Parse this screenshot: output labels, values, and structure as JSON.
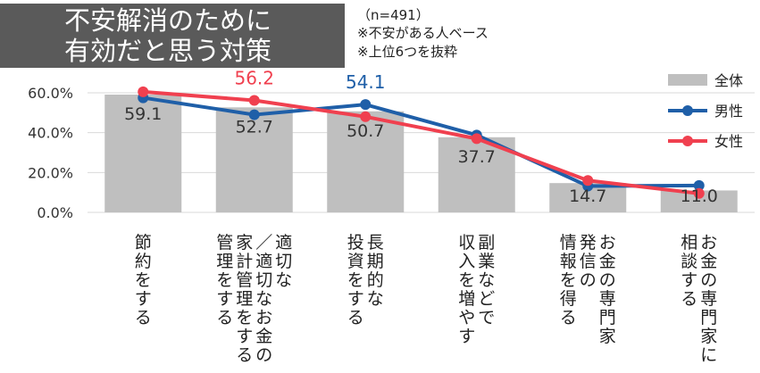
{
  "header": {
    "title_line1": "不安解消のために",
    "title_line2": "有効だと思う対策",
    "note_n": "（n=491）",
    "note_base": "※不安がある人ベース",
    "note_top": "※上位6つを抜粋"
  },
  "chart_data": {
    "type": "bar",
    "categories": [
      [
        "節約をする"
      ],
      [
        "適切な",
        "／適切なお金の",
        "家計管理をする",
        "管理をする"
      ],
      [
        "長期的な",
        "投資をする"
      ],
      [
        "副業などで",
        "収入を増やす"
      ],
      [
        "お金の専門家",
        "発信の",
        "情報を得る"
      ],
      [
        "お金の専門家に",
        "相談する"
      ]
    ],
    "series": [
      {
        "name": "全体",
        "kind": "bar",
        "color": "#bfbfbf",
        "values": [
          59.1,
          52.7,
          50.7,
          37.7,
          14.7,
          11.0
        ],
        "labels": [
          "59.1",
          "52.7",
          "50.7",
          "37.7",
          "14.7",
          "11.0"
        ]
      },
      {
        "name": "男性",
        "kind": "line",
        "color": "#1f5fa8",
        "values": [
          57.5,
          49.0,
          54.1,
          38.8,
          13.2,
          13.5
        ],
        "labels": [
          "",
          "",
          "54.1",
          "",
          "",
          ""
        ]
      },
      {
        "name": "女性",
        "kind": "line",
        "color": "#f0404f",
        "values": [
          60.5,
          56.2,
          48.0,
          37.0,
          16.0,
          9.5
        ],
        "labels": [
          "",
          "56.2",
          "",
          "",
          "",
          ""
        ]
      }
    ],
    "y_ticks": [
      "0.0%",
      "20.0%",
      "40.0%",
      "60.0%"
    ],
    "ylim": [
      0,
      66
    ],
    "grid": true,
    "legend_position": "right"
  }
}
